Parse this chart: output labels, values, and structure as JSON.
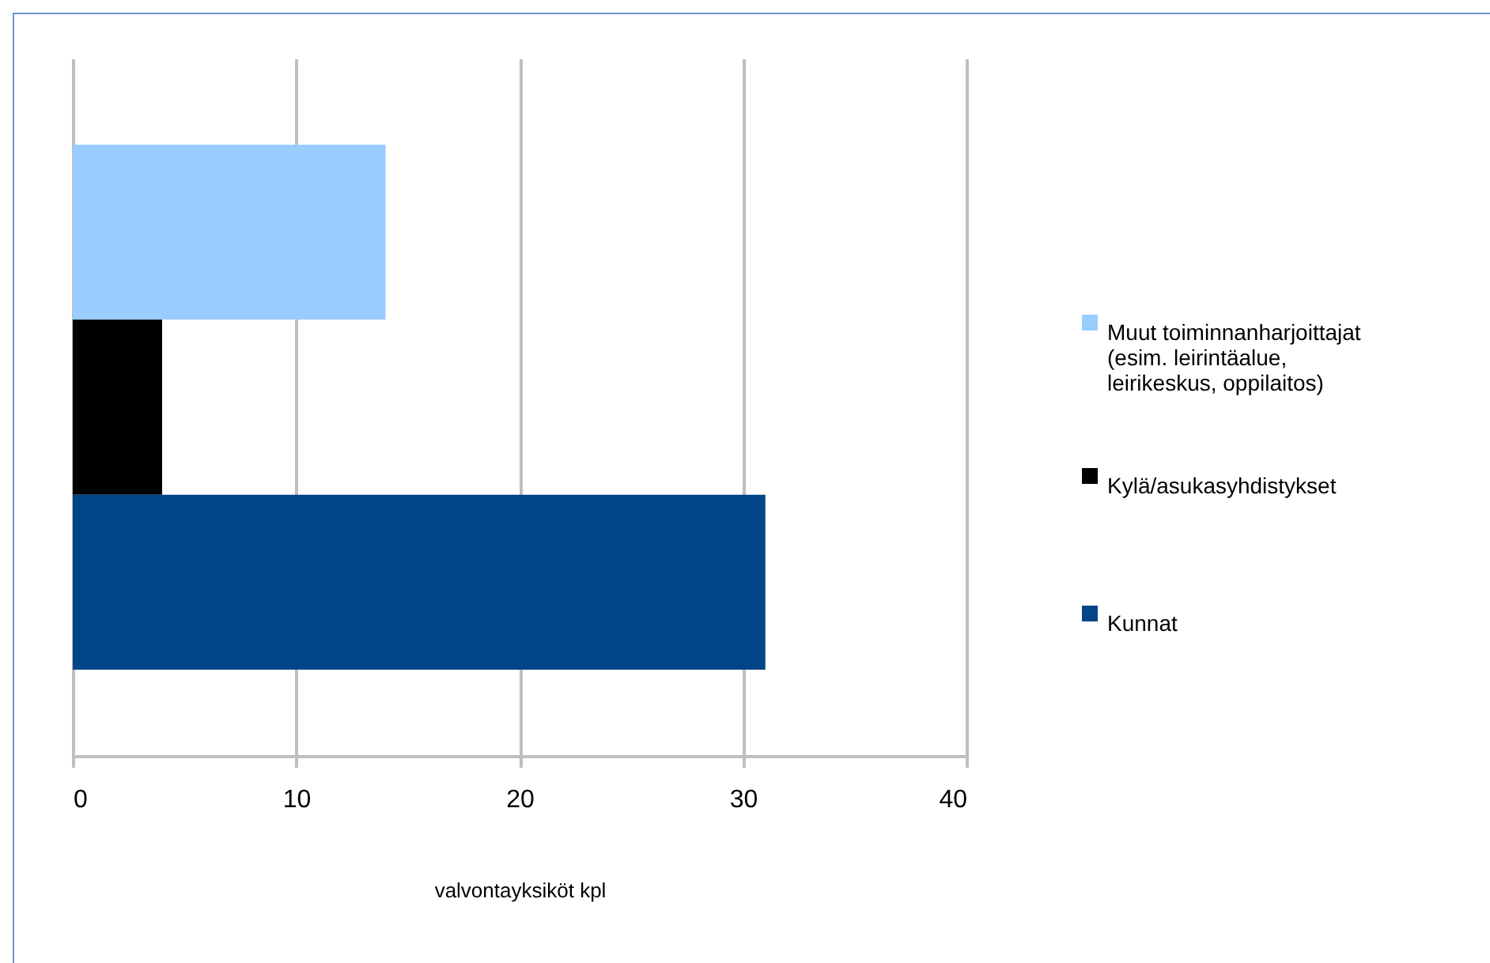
{
  "chart_data": {
    "type": "bar",
    "orientation": "horizontal",
    "xlabel": "valvontayksiköt kpl",
    "categories": [
      null
    ],
    "series": [
      {
        "name": "Muut toiminnanharjoittajat (esim. leirintäalue, leirikeskus, oppilaitos)",
        "color": "#99ccff",
        "values": [
          14
        ]
      },
      {
        "name": "Kylä/asukasyhdistykset",
        "color": "#000000",
        "values": [
          4
        ]
      },
      {
        "name": "Kunnat",
        "color": "#004586",
        "values": [
          31
        ]
      }
    ],
    "xlim": [
      0,
      40
    ],
    "xticks": [
      0,
      10,
      20,
      30,
      40
    ],
    "grid": "x",
    "legend": "right"
  }
}
